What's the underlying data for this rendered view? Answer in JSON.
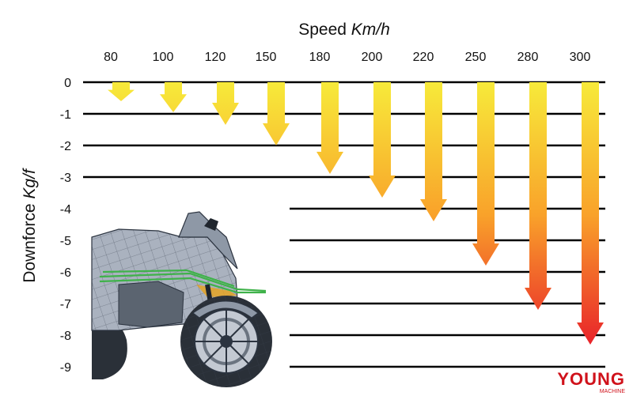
{
  "chart_data": {
    "type": "bar",
    "title": "",
    "xlabel": {
      "prefix": "Speed ",
      "unit": "Km/h"
    },
    "ylabel": {
      "prefix": "Downforce ",
      "unit": "Kg/f"
    },
    "categories": [
      "80",
      "100",
      "120",
      "150",
      "180",
      "200",
      "220",
      "250",
      "280",
      "300"
    ],
    "values": [
      -0.6,
      -0.95,
      -1.35,
      -2.0,
      -2.9,
      -3.65,
      -4.4,
      -5.8,
      -7.2,
      -8.3
    ],
    "y_ticks": [
      "0",
      "-1",
      "-2",
      "-3",
      "-4",
      "-5",
      "-6",
      "-7",
      "-8",
      "-9"
    ],
    "ylim": [
      -9,
      0
    ],
    "grid": true,
    "orientation": "downward arrows",
    "colors": {
      "top": "#f7ea3a",
      "mid": "#f9a22a",
      "bottom": "#e8202a",
      "grid": "#000000"
    }
  },
  "image": {
    "subject": "motorcycle-wireframe",
    "colors": {
      "body": "#9aa4b2",
      "wire": "#2c3440",
      "flow": "#3fb24a",
      "accent": "#e8a21a"
    }
  },
  "logo": {
    "text": "YOUNG",
    "subtext": "MACHINE",
    "color": "#d0121b"
  }
}
